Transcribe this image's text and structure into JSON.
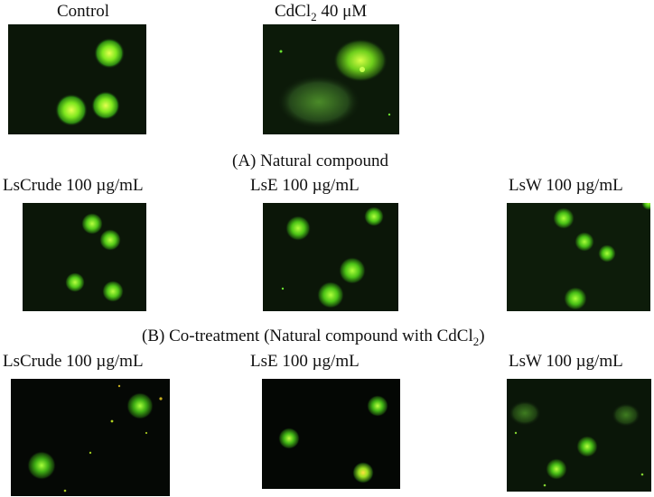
{
  "top_row": {
    "control_label": "Control",
    "cdcl2_label_prefix": "CdCl",
    "cdcl2_label_sub": "2",
    "cdcl2_label_suffix": " 40 μM"
  },
  "section_a": {
    "heading": "(A) Natural compound",
    "labels": [
      "LsCrude 100 µg/mL",
      "LsE 100 µg/mL",
      "LsW 100 µg/mL"
    ]
  },
  "section_b": {
    "heading_prefix": "(B) Co-treatment (Natural compound with CdCl",
    "heading_sub": "2",
    "heading_suffix": ")",
    "labels": [
      "LsCrude 100 µg/mL",
      "LsE 100 µg/mL",
      "LsW 100 µg/mL"
    ]
  },
  "colors": {
    "panel_background": "#0b1608",
    "nucleus_core": "#d8ff3a",
    "nucleus_mid": "#5fd61a",
    "nucleus_edge": "#1f5a0c"
  }
}
